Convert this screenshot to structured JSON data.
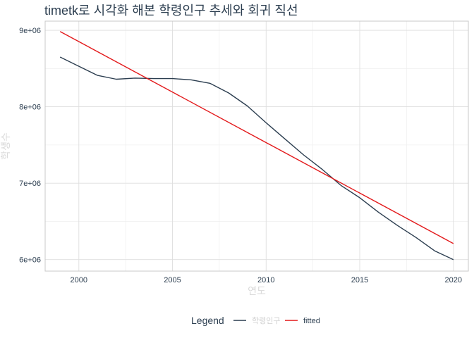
{
  "chart_data": {
    "type": "line",
    "title": "timetk로 시각화 해본 학령인구 추세와 회귀 직선",
    "xlabel": "연도",
    "ylabel": "학생수",
    "xlim": [
      1998.2,
      2020.8
    ],
    "ylim": [
      5850000,
      9120000
    ],
    "x_ticks": [
      2000,
      2005,
      2010,
      2015,
      2020
    ],
    "y_ticks": [
      6000000,
      7000000,
      8000000,
      9000000
    ],
    "x_tick_labels": [
      "2000",
      "2005",
      "2010",
      "2015",
      "2020"
    ],
    "y_tick_labels": [
      "6e+06",
      "7e+06",
      "8e+06",
      "9e+06"
    ],
    "grid": true,
    "legend_title": "Legend",
    "legend_position": "bottom",
    "series": [
      {
        "name": "학령인구",
        "color": "#2c3e50",
        "x": [
          1999,
          2000,
          2001,
          2002,
          2003,
          2004,
          2005,
          2006,
          2007,
          2008,
          2009,
          2010,
          2011,
          2012,
          2013,
          2014,
          2015,
          2016,
          2017,
          2018,
          2019,
          2020
        ],
        "y": [
          8650000,
          8530000,
          8410000,
          8360000,
          8375000,
          8368000,
          8368000,
          8352000,
          8307000,
          8180000,
          8010000,
          7790000,
          7580000,
          7370000,
          7180000,
          6970000,
          6810000,
          6620000,
          6450000,
          6290000,
          6115000,
          6000000
        ]
      },
      {
        "name": "fitted",
        "color": "#e31a1c",
        "x": [
          1999,
          2020
        ],
        "y": [
          8985000,
          6210000
        ]
      }
    ]
  }
}
